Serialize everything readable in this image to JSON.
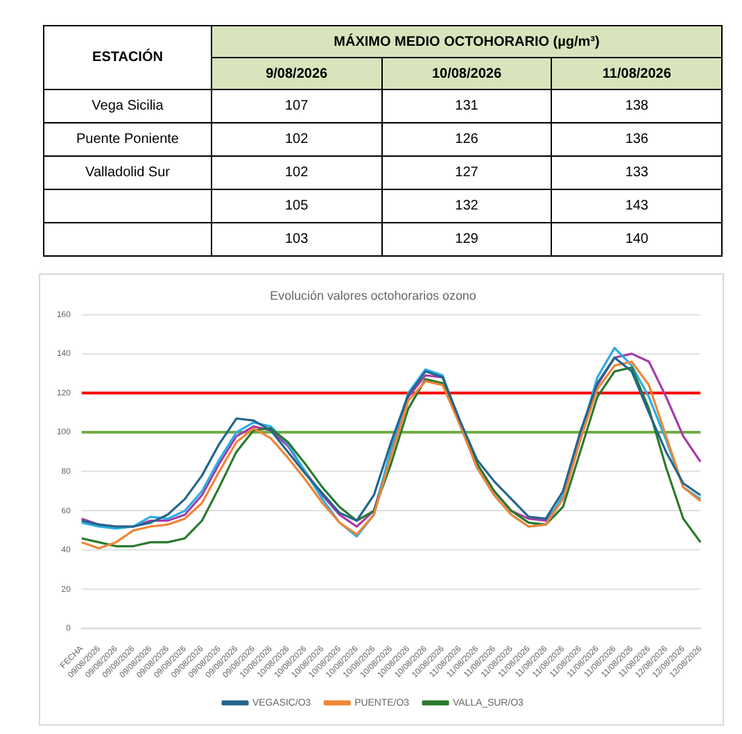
{
  "chart_data": [
    {
      "type": "heatmap",
      "title": "MÁXIMO MEDIO OCTOHORARIO (µg/m³)",
      "ylabel": "ESTACIÓN",
      "categories": [
        "9/08/2026",
        "10/08/2026",
        "11/08/2026"
      ],
      "y_categories": [
        "Vega Sicilia",
        "Puente Poniente",
        "Valladolid Sur",
        null,
        null
      ],
      "cells": [
        [
          107,
          131,
          138
        ],
        [
          102,
          126,
          136
        ],
        [
          102,
          127,
          133
        ],
        [
          105,
          132,
          143
        ],
        [
          103,
          129,
          140
        ]
      ],
      "data_labels": true
    },
    {
      "type": "line",
      "title": "Evolución valores octohorarios ozono",
      "categories": [
        "FECHA",
        "09/08/2026",
        "09/08/2026",
        "09/08/2026",
        "09/08/2026",
        "09/08/2026",
        "09/08/2026",
        "09/08/2026",
        "09/08/2026",
        "09/08/2026",
        "09/08/2026",
        "10/08/2026",
        "10/08/2026",
        "10/08/2026",
        "10/08/2026",
        "10/08/2026",
        "10/08/2026",
        "10/08/2026",
        "10/08/2026",
        "10/08/2026",
        "10/08/2026",
        "10/08/2026",
        "11/08/2026",
        "11/08/2026",
        "11/08/2026",
        "11/08/2026",
        "11/08/2026",
        "11/08/2026",
        "11/08/2026",
        "11/08/2026",
        "11/08/2026",
        "11/08/2026",
        "11/08/2026",
        "11/08/2026",
        "12/08/2026",
        "12/08/2026",
        "12/08/2026"
      ],
      "series": [
        {
          "name": "VEGASIC/O3",
          "color": "#23658c",
          "values": [
            55,
            53,
            52,
            52,
            54,
            58,
            66,
            78,
            94,
            107,
            106,
            101,
            90,
            79,
            69,
            59,
            55,
            68,
            95,
            119,
            131,
            128,
            106,
            86,
            75,
            66,
            57,
            56,
            70,
            100,
            125,
            138,
            131,
            110,
            90,
            74,
            68
          ]
        },
        {
          "name": "PUENTE/O3",
          "color": "#f08535",
          "values": [
            44,
            41,
            44,
            50,
            52,
            53,
            56,
            64,
            80,
            95,
            102,
            97,
            87,
            76,
            64,
            54,
            48,
            58,
            88,
            116,
            126,
            124,
            104,
            82,
            68,
            58,
            52,
            53,
            66,
            96,
            122,
            134,
            136,
            124,
            98,
            72,
            65
          ]
        },
        {
          "name": "VALLA_SUR/O3",
          "color": "#2a7a2e",
          "values": [
            46,
            44,
            42,
            42,
            44,
            44,
            46,
            55,
            72,
            90,
            101,
            102,
            95,
            84,
            72,
            62,
            55,
            60,
            84,
            112,
            127,
            125,
            104,
            84,
            70,
            60,
            54,
            53,
            62,
            90,
            118,
            131,
            133,
            112,
            82,
            56,
            44
          ]
        },
        {
          "color": "#2aaee3",
          "values": [
            54,
            52,
            51,
            52,
            57,
            56,
            60,
            70,
            86,
            100,
            105,
            103,
            94,
            80,
            66,
            54,
            47,
            58,
            92,
            120,
            132,
            129,
            104,
            82,
            68,
            58,
            52,
            53,
            68,
            98,
            128,
            143,
            134,
            118,
            96,
            72,
            66
          ]
        },
        {
          "color": "#a53ca8",
          "values": [
            56,
            53,
            52,
            52,
            55,
            55,
            58,
            68,
            84,
            98,
            103,
            101,
            93,
            80,
            68,
            58,
            52,
            60,
            90,
            118,
            129,
            128,
            106,
            84,
            70,
            60,
            56,
            55,
            66,
            96,
            124,
            138,
            140,
            136,
            118,
            98,
            85
          ]
        }
      ],
      "ylim": [
        0,
        160
      ],
      "yticks": [
        0,
        20,
        40,
        60,
        80,
        100,
        120,
        140,
        160
      ],
      "ref_lines": [
        {
          "axis": "y",
          "value": 120,
          "color": "#ff0000"
        },
        {
          "axis": "y",
          "value": 100,
          "color": "#70ad47"
        }
      ],
      "grid": "y",
      "legend": "bottom",
      "marker": "none",
      "line_style": "solid"
    }
  ]
}
